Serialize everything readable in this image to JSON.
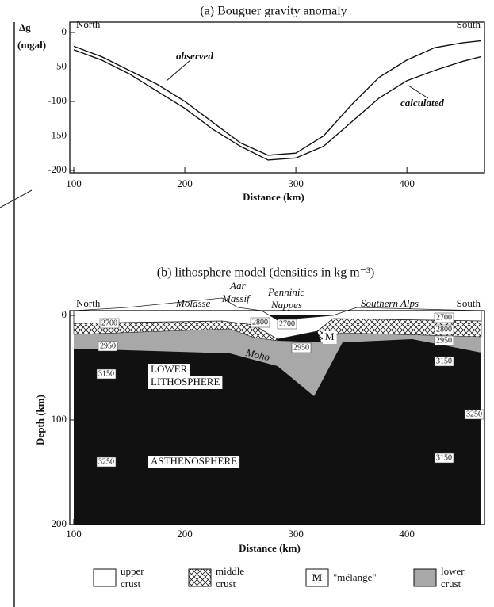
{
  "chart_data": [
    {
      "type": "line",
      "title": "(a) Bouguer gravity anomaly",
      "y_label": [
        "Δg",
        "(mgal)"
      ],
      "x_label": "Distance (km)",
      "corner_labels": [
        "North",
        "South"
      ],
      "x": [
        100,
        125,
        150,
        175,
        200,
        225,
        250,
        275,
        300,
        325,
        350,
        375,
        400,
        425,
        450,
        467
      ],
      "series": [
        {
          "name": "observed",
          "color": "#111111",
          "values": [
            -20,
            -35,
            -55,
            -75,
            -100,
            -130,
            -160,
            -178,
            -175,
            -150,
            -105,
            -65,
            -40,
            -22,
            -15,
            -12
          ]
        },
        {
          "name": "calculated",
          "color": "#111111",
          "values": [
            -25,
            -40,
            -60,
            -85,
            -110,
            -140,
            -165,
            -185,
            -182,
            -165,
            -130,
            -95,
            -70,
            -55,
            -42,
            -35
          ]
        }
      ],
      "xlim": [
        100,
        467
      ],
      "ylim": [
        -200,
        0
      ],
      "xticks": [
        100,
        200,
        300,
        400
      ],
      "yticks": [
        0,
        -50,
        -100,
        -150,
        -200
      ]
    }
  ],
  "lithosphere_model": {
    "title": "(b) lithosphere model (densities in kg m⁻³)",
    "x_label": "Distance (km)",
    "y_label": "Depth (km)",
    "xlim": [
      100,
      467
    ],
    "ylim": [
      0,
      200
    ],
    "xticks": [
      100,
      200,
      300,
      400
    ],
    "yticks": [
      0,
      100,
      200
    ],
    "surface_labels": [
      "North",
      "Molasse",
      "Aar",
      "Massif",
      "Penninic",
      "Nappes",
      "Southern Alps",
      "South"
    ],
    "unit_labels": [
      "LOWER",
      "LITHOSPHERE",
      "ASTHENOSPHERE",
      "Moho",
      "M"
    ],
    "densities": [
      2700,
      2950,
      3150,
      3250,
      2800,
      2700,
      2950,
      2700,
      2800,
      2950,
      3150,
      3250,
      3150
    ],
    "legend": [
      {
        "symbol": "",
        "lines": [
          "upper",
          "crust"
        ]
      },
      {
        "symbol": "",
        "lines": [
          "middle",
          "crust"
        ]
      },
      {
        "symbol": "M",
        "lines": [
          "\"mélange\""
        ]
      },
      {
        "symbol": "",
        "lines": [
          "lower",
          "crust"
        ]
      }
    ]
  }
}
